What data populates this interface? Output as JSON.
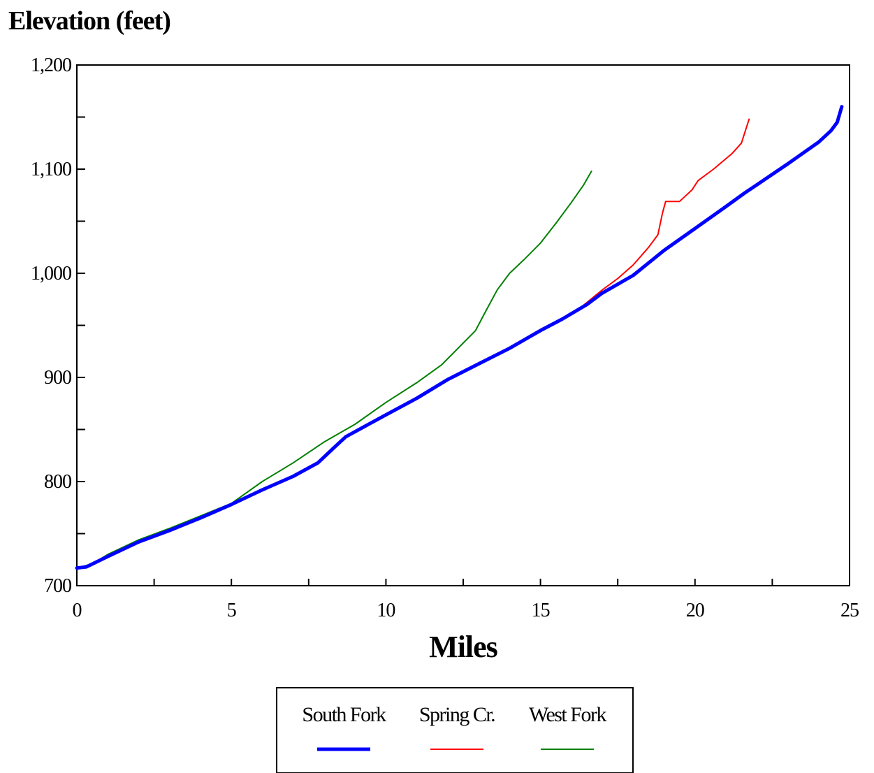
{
  "chart_data": {
    "type": "line",
    "title": "Elevation (feet)",
    "xlabel": "Miles",
    "ylabel": "",
    "xlim": [
      0,
      25
    ],
    "ylim": [
      700,
      1200
    ],
    "x_ticks": [
      0,
      5,
      10,
      15,
      20,
      25
    ],
    "x_tick_labels": [
      "0",
      "5",
      "10",
      "15",
      "20",
      "25"
    ],
    "y_ticks": [
      700,
      800,
      900,
      1000,
      1100,
      1200
    ],
    "y_tick_labels": [
      "700",
      "800",
      "900",
      "1,000",
      "1,100",
      "1,200"
    ],
    "grid": false,
    "legend_position": "bottom-center",
    "series": [
      {
        "name": "South Fork",
        "color": "#0000ff",
        "points": [
          [
            0,
            717
          ],
          [
            0.3,
            718
          ],
          [
            1,
            728
          ],
          [
            2,
            742
          ],
          [
            3,
            753
          ],
          [
            4,
            765
          ],
          [
            5,
            778
          ],
          [
            6,
            792
          ],
          [
            7,
            805
          ],
          [
            7.8,
            818
          ],
          [
            8.3,
            832
          ],
          [
            8.7,
            843
          ],
          [
            9.5,
            856
          ],
          [
            10,
            864
          ],
          [
            11,
            880
          ],
          [
            12,
            898
          ],
          [
            13,
            913
          ],
          [
            14,
            928
          ],
          [
            15,
            945
          ],
          [
            15.7,
            956
          ],
          [
            16.5,
            970
          ],
          [
            17,
            981
          ],
          [
            18,
            998
          ],
          [
            19,
            1022
          ],
          [
            20,
            1043
          ],
          [
            21,
            1064
          ],
          [
            21.6,
            1077
          ],
          [
            22,
            1085
          ],
          [
            23,
            1105
          ],
          [
            24,
            1126
          ],
          [
            24.4,
            1137
          ],
          [
            24.6,
            1145
          ],
          [
            24.75,
            1160
          ]
        ]
      },
      {
        "name": "Spring Cr.",
        "color": "#ff0000",
        "points": [
          [
            15.7,
            956
          ],
          [
            16.3,
            967
          ],
          [
            17,
            984
          ],
          [
            17.5,
            995
          ],
          [
            18,
            1008
          ],
          [
            18.5,
            1025
          ],
          [
            18.8,
            1037
          ],
          [
            18.95,
            1058
          ],
          [
            19.05,
            1069
          ],
          [
            19.5,
            1069
          ],
          [
            19.9,
            1080
          ],
          [
            20.1,
            1089
          ],
          [
            20.6,
            1100
          ],
          [
            21.2,
            1115
          ],
          [
            21.5,
            1125
          ],
          [
            21.75,
            1148
          ]
        ]
      },
      {
        "name": "West Fork",
        "color": "#008000",
        "points": [
          [
            0,
            717
          ],
          [
            0.5,
            721
          ],
          [
            1,
            730
          ],
          [
            2,
            744
          ],
          [
            3,
            755
          ],
          [
            4,
            767
          ],
          [
            5,
            779
          ],
          [
            6,
            800
          ],
          [
            7,
            818
          ],
          [
            8,
            838
          ],
          [
            9,
            855
          ],
          [
            10,
            876
          ],
          [
            11,
            895
          ],
          [
            11.8,
            912
          ],
          [
            12.5,
            933
          ],
          [
            12.9,
            945
          ],
          [
            13.2,
            962
          ],
          [
            13.6,
            984
          ],
          [
            14,
            1000
          ],
          [
            14.5,
            1014
          ],
          [
            15,
            1029
          ],
          [
            15.5,
            1048
          ],
          [
            16,
            1068
          ],
          [
            16.4,
            1085
          ],
          [
            16.65,
            1098
          ]
        ]
      }
    ]
  }
}
